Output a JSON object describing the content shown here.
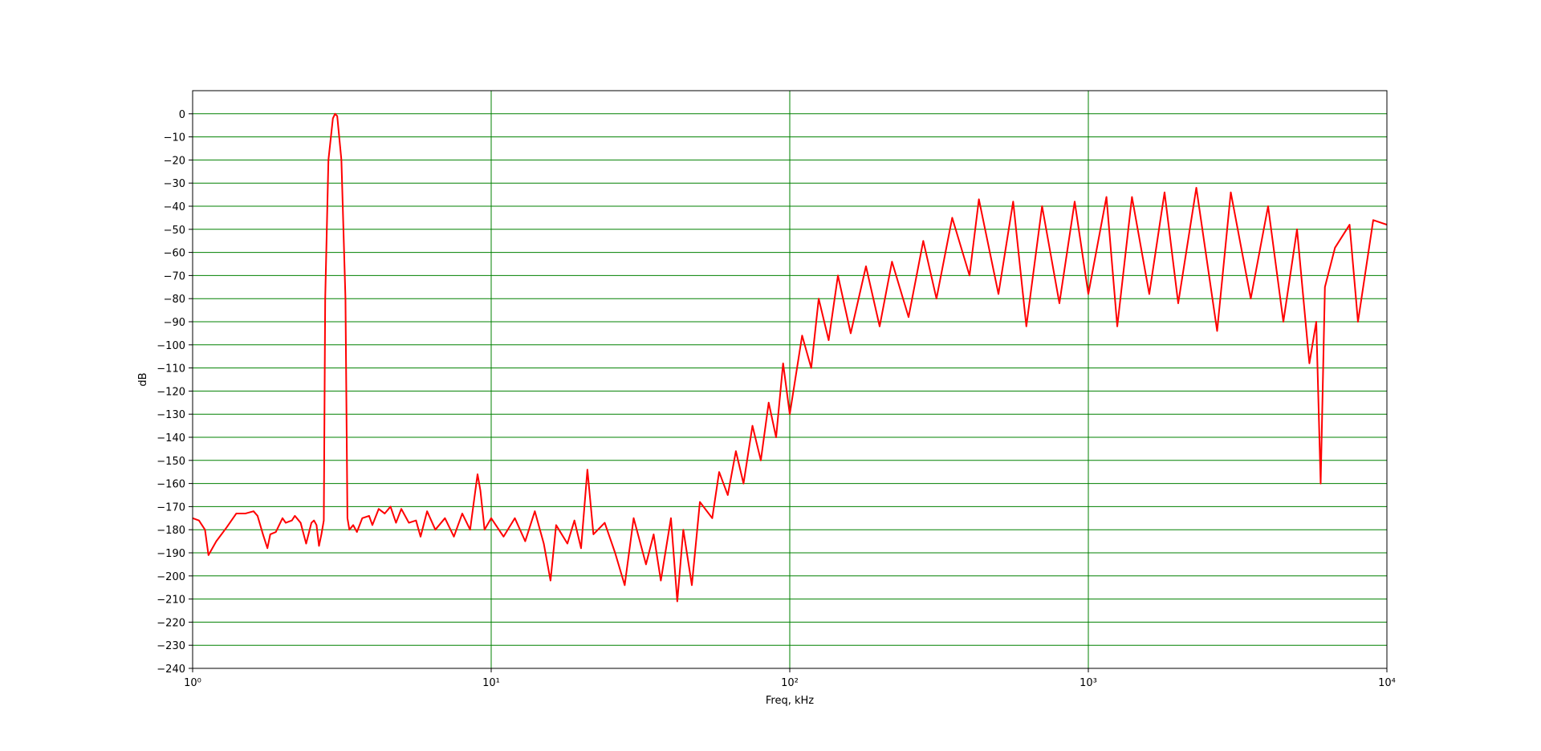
{
  "chart_data": {
    "type": "line",
    "xlabel": "Freq, kHz",
    "ylabel": "dB",
    "xscale": "log",
    "grid": true,
    "grid_color": "#008000",
    "xlim": [
      1,
      10000
    ],
    "ylim": [
      -240,
      10
    ],
    "xticks": [
      {
        "value": 1,
        "label": "10⁰"
      },
      {
        "value": 10,
        "label": "10¹"
      },
      {
        "value": 100,
        "label": "10²"
      },
      {
        "value": 1000,
        "label": "10³"
      },
      {
        "value": 10000,
        "label": "10⁴"
      }
    ],
    "yticks": [
      0,
      {
        "value": -10,
        "label": "−10"
      },
      {
        "value": -20,
        "label": "−20"
      },
      {
        "value": -30,
        "label": "−30"
      },
      {
        "value": -40,
        "label": "−40"
      },
      {
        "value": -50,
        "label": "−50"
      },
      {
        "value": -60,
        "label": "−60"
      },
      {
        "value": -70,
        "label": "−70"
      },
      {
        "value": -80,
        "label": "−80"
      },
      {
        "value": -90,
        "label": "−90"
      },
      {
        "value": -100,
        "label": "−100"
      },
      {
        "value": -110,
        "label": "−110"
      },
      {
        "value": -120,
        "label": "−120"
      },
      {
        "value": -130,
        "label": "−130"
      },
      {
        "value": -140,
        "label": "−140"
      },
      {
        "value": -150,
        "label": "−150"
      },
      {
        "value": -160,
        "label": "−160"
      },
      {
        "value": -170,
        "label": "−170"
      },
      {
        "value": -180,
        "label": "−180"
      },
      {
        "value": -190,
        "label": "−190"
      },
      {
        "value": -200,
        "label": "−200"
      },
      {
        "value": -210,
        "label": "−210"
      },
      {
        "value": -220,
        "label": "−220"
      },
      {
        "value": -230,
        "label": "−230"
      },
      {
        "value": -240,
        "label": "−240"
      }
    ],
    "x": [
      1,
      1.05,
      1.1,
      1.13,
      1.2,
      1.3,
      1.4,
      1.5,
      1.6,
      1.65,
      1.72,
      1.78,
      1.82,
      1.9,
      2.0,
      2.05,
      2.15,
      2.2,
      2.3,
      2.4,
      2.5,
      2.55,
      2.6,
      2.65,
      2.7,
      2.75,
      2.78,
      2.85,
      2.95,
      3.0,
      3.05,
      3.15,
      3.25,
      3.3,
      3.35,
      3.45,
      3.55,
      3.7,
      3.9,
      4.0,
      4.2,
      4.4,
      4.6,
      4.8,
      5.0,
      5.3,
      5.6,
      5.8,
      6.1,
      6.5,
      7.0,
      7.5,
      8.0,
      8.5,
      9.0,
      9.2,
      9.5,
      10,
      11,
      12,
      13,
      14,
      15,
      15.8,
      16.5,
      18,
      19,
      20,
      21,
      22,
      24,
      26,
      28,
      30,
      33,
      35,
      37,
      40,
      42,
      44,
      47,
      50,
      55,
      58,
      62,
      66,
      70,
      75,
      80,
      85,
      90,
      95,
      100,
      110,
      118,
      125,
      135,
      145,
      160,
      180,
      200,
      220,
      250,
      280,
      310,
      350,
      400,
      430,
      500,
      560,
      620,
      700,
      800,
      900,
      1000,
      1150,
      1250,
      1400,
      1600,
      1800,
      2000,
      2300,
      2700,
      3000,
      3500,
      4000,
      4500,
      5000,
      5500,
      5800,
      6000,
      6200,
      6700,
      7500,
      8000,
      9000,
      10000
    ],
    "series": [
      {
        "color": "#ff0000",
        "values": [
          -175,
          -176,
          -180,
          -191,
          -185,
          -179,
          -173,
          -173,
          -172,
          -174,
          -182,
          -188,
          -182,
          -181,
          -175,
          -177,
          -176,
          -174,
          -177,
          -186,
          -177,
          -176,
          -178,
          -187,
          -182,
          -176,
          -80,
          -20,
          -2,
          0,
          -1,
          -20,
          -80,
          -175,
          -180,
          -178,
          -181,
          -175,
          -174,
          -178,
          -171,
          -173,
          -170,
          -177,
          -171,
          -177,
          -176,
          -183,
          -172,
          -180,
          -175,
          -183,
          -173,
          -180,
          -156,
          -163,
          -180,
          -175,
          -183,
          -175,
          -185,
          -172,
          -186,
          -202,
          -178,
          -186,
          -176,
          -188,
          -154,
          -182,
          -177,
          -190,
          -204,
          -175,
          -195,
          -182,
          -202,
          -175,
          -211,
          -180,
          -204,
          -168,
          -175,
          -155,
          -165,
          -146,
          -160,
          -135,
          -150,
          -125,
          -140,
          -108,
          -130,
          -96,
          -110,
          -80,
          -98,
          -70,
          -95,
          -66,
          -92,
          -64,
          -88,
          -55,
          -80,
          -45,
          -70,
          -37,
          -78,
          -38,
          -92,
          -40,
          -82,
          -38,
          -78,
          -36,
          -92,
          -36,
          -78,
          -34,
          -82,
          -32,
          -94,
          -34,
          -80,
          -40,
          -90,
          -50,
          -108,
          -90,
          -160,
          -75,
          -58,
          -48,
          -90,
          -46,
          -48
        ]
      }
    ]
  }
}
